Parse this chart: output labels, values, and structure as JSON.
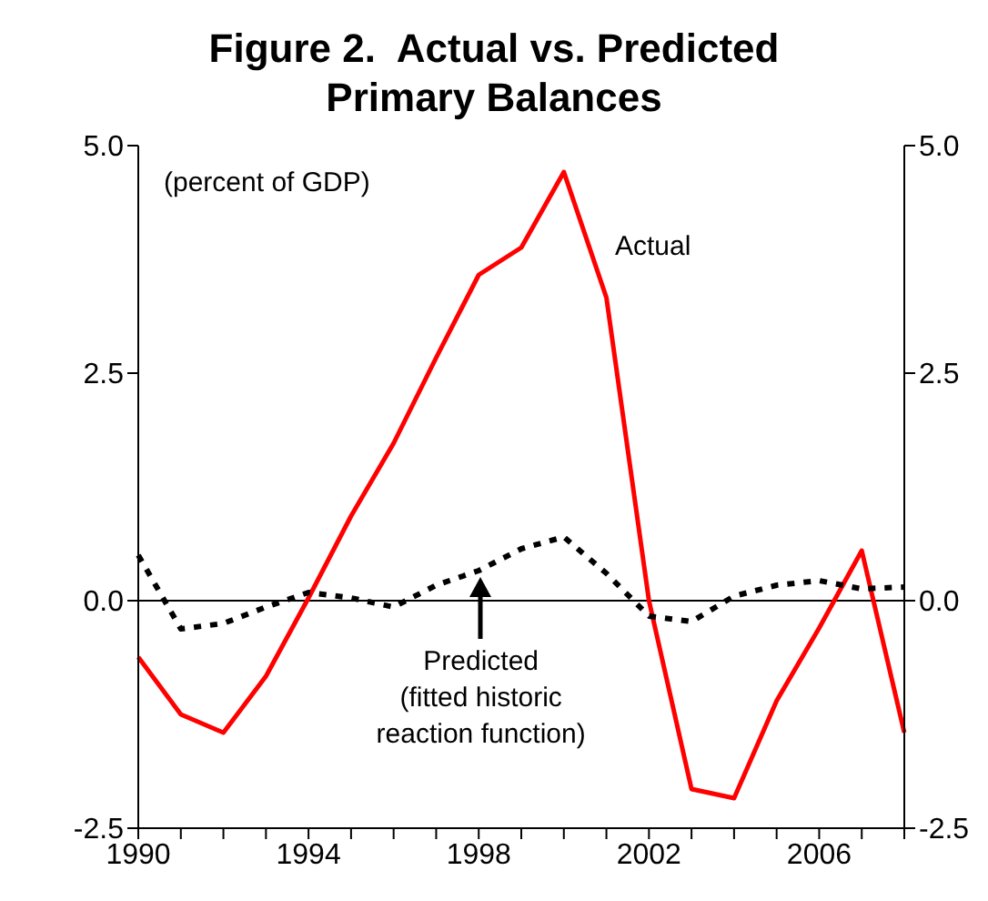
{
  "chart_data": {
    "type": "line",
    "title": "Figure 2.  Actual vs. Predicted Primary Balances",
    "annotations": [
      "(percent of GDP)",
      {
        "text": "Predicted (fitted historic reaction function)",
        "x": "1998",
        "y": 0.33
      }
    ],
    "categories": [
      "1990",
      null,
      null,
      null,
      "1994",
      null,
      null,
      null,
      "1998",
      null,
      null,
      null,
      "2002",
      null,
      null,
      null,
      "2006",
      null,
      null
    ],
    "series": [
      {
        "name": "Actual",
        "color": "#ff0000",
        "line_style": "solid",
        "values": [
          -0.62,
          -1.25,
          -1.45,
          -0.83,
          0.03,
          0.93,
          1.73,
          2.67,
          3.58,
          3.88,
          4.71,
          3.33,
          0.0,
          -2.07,
          -2.17,
          -1.1,
          -0.3,
          0.55,
          -1.45
        ]
      },
      {
        "color": "#000000",
        "line_style": "dashed",
        "values": [
          0.5,
          -0.31,
          -0.25,
          -0.07,
          0.09,
          0.03,
          -0.07,
          0.17,
          0.33,
          0.57,
          0.7,
          0.3,
          -0.17,
          -0.23,
          0.05,
          0.17,
          0.22,
          0.13,
          0.15
        ]
      }
    ],
    "ylim": [
      -2.5,
      5
    ],
    "yticks": [
      {
        "value": -2.5,
        "label": "-2.5"
      },
      {
        "value": 0,
        "label": "0.0"
      },
      {
        "value": 2.5,
        "label": "2.5"
      },
      {
        "value": 5,
        "label": "5.0"
      }
    ],
    "y2lim": [
      -2.5,
      5
    ],
    "y2ticks": [
      {
        "value": -2.5,
        "label": "-2.5"
      },
      {
        "value": 0,
        "label": "0.0"
      },
      {
        "value": 2.5,
        "label": "2.5"
      },
      {
        "value": 5,
        "label": "5.0"
      }
    ],
    "ref_lines": [
      {
        "axis": "y",
        "value": 0,
        "color": "#000000"
      }
    ],
    "grid": false,
    "legend": false,
    "marker": "none"
  }
}
